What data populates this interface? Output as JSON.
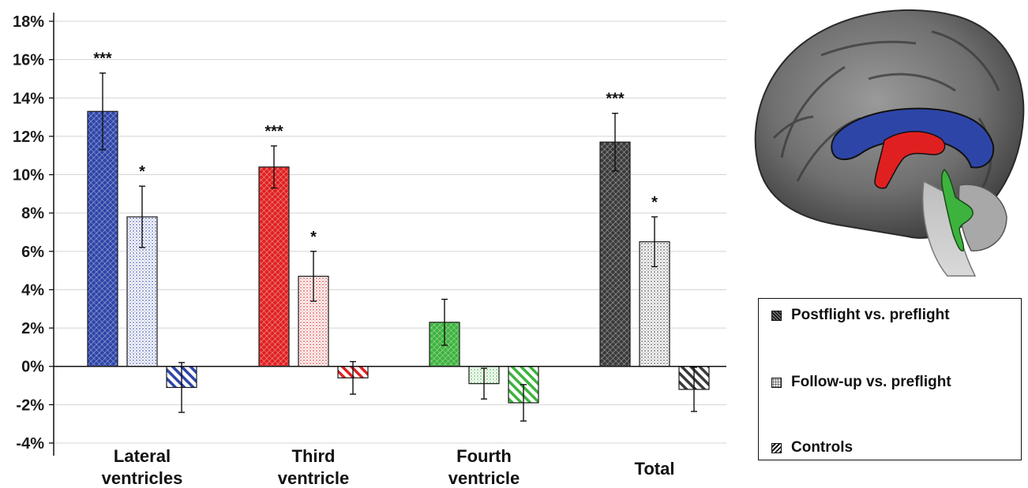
{
  "chart_data": {
    "type": "bar",
    "categories": [
      [
        "Lateral",
        "ventricles"
      ],
      [
        "Third",
        "ventricle"
      ],
      [
        "Fourth",
        "ventricle"
      ],
      [
        "Total"
      ]
    ],
    "series": [
      {
        "name": "Postflight vs. preflight",
        "values": [
          13.3,
          10.4,
          2.3,
          11.7
        ],
        "errors": [
          2.0,
          1.1,
          1.2,
          1.5
        ]
      },
      {
        "name": "Follow-up vs. preflight",
        "values": [
          7.8,
          4.7,
          -0.9,
          6.5
        ],
        "errors": [
          1.6,
          1.3,
          0.8,
          1.3
        ]
      },
      {
        "name": "Controls",
        "values": [
          -1.1,
          -0.6,
          -1.9,
          -1.2
        ],
        "errors": [
          1.3,
          0.85,
          0.95,
          1.15
        ]
      }
    ],
    "annotations": [
      [
        "***",
        "*",
        ""
      ],
      [
        "***",
        "*",
        ""
      ],
      [
        "",
        "",
        ""
      ],
      [
        "***",
        "*",
        ""
      ]
    ],
    "category_colors": [
      "#2e45a8",
      "#e02020",
      "#3db33d",
      "#3a3a3a"
    ],
    "ylim": [
      -4,
      18
    ],
    "yticks": [
      -4,
      -2,
      0,
      2,
      4,
      6,
      8,
      10,
      12,
      14,
      16,
      18
    ],
    "ytick_suffix": "%",
    "grid": true,
    "legend_position": "bottom-right"
  },
  "legend": {
    "items": [
      {
        "label": "Postflight vs. preflight",
        "icon": "dense-hatch-swatch"
      },
      {
        "label": "Follow-up vs. preflight",
        "icon": "dotted-swatch"
      },
      {
        "label": "Controls",
        "icon": "diagonal-stripe-swatch"
      }
    ]
  },
  "figure": {
    "image": "sagittal-brain-mri-with-ventricles",
    "colors": {
      "lateral": "#2e45a8",
      "third": "#e02020",
      "fourth": "#3db33d"
    }
  }
}
